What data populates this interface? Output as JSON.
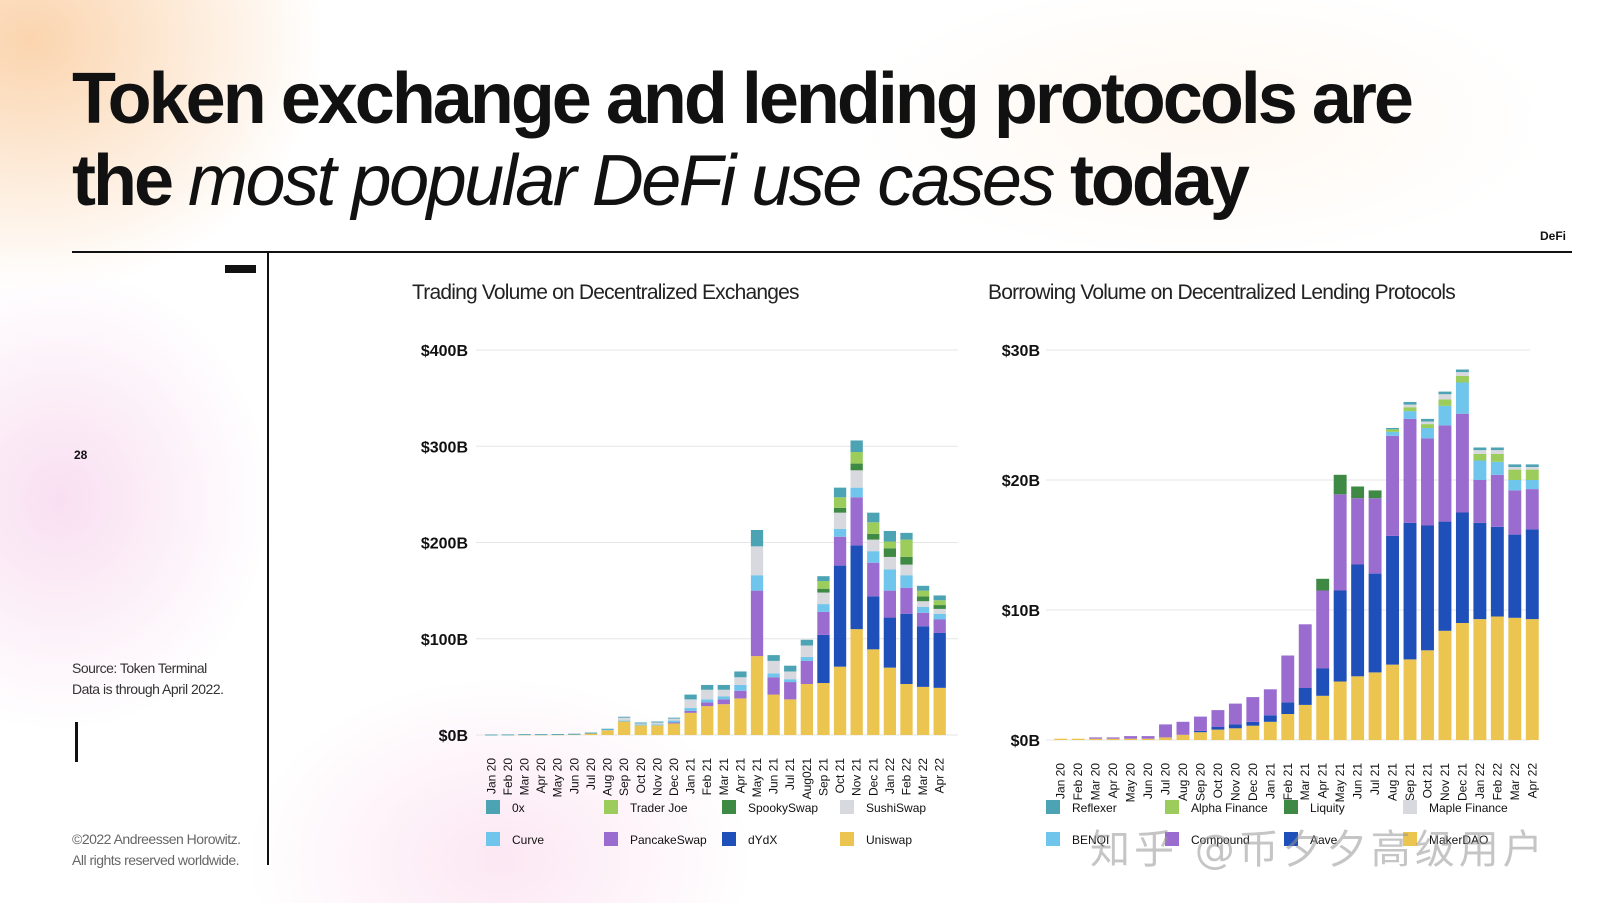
{
  "slide": {
    "title_part1": "Token exchange and lending protocols are",
    "title_part2": "the",
    "title_italic": "most popular DeFi use cases",
    "title_part3": "today",
    "tag": "DeFi",
    "page_number": "28",
    "source_line1": "Source: Token Terminal",
    "source_line2": "Data is through April 2022.",
    "copyright_line1": "©2022 Andreessen Horowitz.",
    "copyright_line2": "All rights reserved worldwide.",
    "watermark": "知乎 @币夕夕高级用户"
  },
  "colors": {
    "teal": "#4ba3b3",
    "lime": "#9bcc5c",
    "green": "#3e8a45",
    "lightgray": "#d7d9de",
    "lightblue": "#6fc5ec",
    "purple": "#9b6ccf",
    "blue": "#1f4fb8",
    "yellow": "#ecc450",
    "grid": "#e6e6e6",
    "text": "#111111"
  },
  "chart_data": [
    {
      "type": "bar",
      "stacked": true,
      "title": "Trading Volume on Decentralized Exchanges",
      "categories": [
        "Jan 20",
        "Feb 20",
        "Mar 20",
        "Apr 20",
        "May 20",
        "Jun 20",
        "Jul 20",
        "Aug 20",
        "Sep 20",
        "Oct 20",
        "Nov 20",
        "Dec 20",
        "Jan 21",
        "Feb 21",
        "Mar 21",
        "Apr 21",
        "May 21",
        "Jun 21",
        "Jul 21",
        "Aug021",
        "Sep 21",
        "Oct 21",
        "Nov 21",
        "Dec 21",
        "Jan 22",
        "Feb 22",
        "Mar 22",
        "Apr 22"
      ],
      "yticks": [
        "$0B",
        "$100B",
        "$200B",
        "$300B",
        "$400B"
      ],
      "ylim": [
        0,
        400
      ],
      "grid": true,
      "legend_position": "bottom",
      "series": [
        {
          "name": "Uniswap",
          "color": "yellow",
          "values": [
            0.3,
            0.4,
            0.5,
            0.5,
            0.6,
            1,
            2,
            5,
            14,
            10,
            10,
            12,
            23,
            30,
            32,
            38,
            82,
            42,
            37,
            53,
            54,
            71,
            110,
            89,
            70,
            53,
            50,
            49
          ]
        },
        {
          "name": "dYdX",
          "color": "blue",
          "values": [
            0,
            0,
            0,
            0,
            0,
            0,
            0,
            0,
            0,
            0,
            0,
            0,
            0,
            0,
            0,
            0,
            0,
            0,
            0,
            0,
            50,
            105,
            87,
            55,
            52,
            73,
            63,
            57
          ]
        },
        {
          "name": "PancakeSwap",
          "color": "purple",
          "values": [
            0,
            0,
            0,
            0,
            0,
            0,
            0,
            0,
            0,
            0,
            0,
            1,
            2,
            4,
            5,
            8,
            68,
            18,
            18,
            24,
            24,
            30,
            50,
            35,
            28,
            27,
            14,
            14
          ]
        },
        {
          "name": "Curve",
          "color": "lightblue",
          "values": [
            0.1,
            0.1,
            0.2,
            0.2,
            0.2,
            0.2,
            0.3,
            1,
            1,
            1,
            1,
            2,
            3,
            3,
            3,
            6,
            16,
            4,
            3,
            4,
            8,
            8,
            10,
            12,
            22,
            13,
            6,
            6
          ]
        },
        {
          "name": "SushiSwap",
          "color": "lightgray",
          "values": [
            0,
            0,
            0,
            0,
            0,
            0,
            0,
            0,
            3,
            1,
            2,
            2,
            9,
            10,
            7,
            8,
            30,
            13,
            8,
            12,
            12,
            17,
            18,
            12,
            13,
            11,
            6,
            5
          ]
        },
        {
          "name": "SpookySwap",
          "color": "green",
          "values": [
            0,
            0,
            0,
            0,
            0,
            0,
            0,
            0,
            0,
            0,
            0,
            0,
            0,
            0,
            0,
            0,
            0,
            0,
            0,
            0,
            4,
            5,
            7,
            6,
            9,
            8,
            5,
            4
          ]
        },
        {
          "name": "Trader Joe",
          "color": "lime",
          "values": [
            0,
            0,
            0,
            0,
            0,
            0,
            0,
            0,
            0,
            0,
            0,
            0,
            0,
            0,
            0,
            0,
            0,
            0,
            0,
            0,
            8,
            11,
            12,
            12,
            7,
            18,
            6,
            5
          ]
        },
        {
          "name": "0x",
          "color": "teal",
          "values": [
            0.1,
            0.1,
            0.1,
            0.1,
            0.1,
            0.1,
            0.2,
            0.5,
            1,
            1,
            1,
            1,
            5,
            5,
            5,
            6,
            17,
            6,
            6,
            6,
            5,
            10,
            12,
            10,
            11,
            7,
            5,
            5
          ]
        }
      ],
      "legend": [
        "0x",
        "Trader Joe",
        "SpookySwap",
        "SushiSwap",
        "Curve",
        "PancakeSwap",
        "dYdX",
        "Uniswap"
      ]
    },
    {
      "type": "bar",
      "stacked": true,
      "title": "Borrowing Volume on Decentralized Lending Protocols",
      "categories": [
        "Jan 20",
        "Feb 20",
        "Mar 20",
        "Apr 20",
        "May 20",
        "Jun 20",
        "Jul 20",
        "Aug 20",
        "Sep 20",
        "Oct 20",
        "Nov 20",
        "Dec 20",
        "Jan 21",
        "Feb 21",
        "Mar 21",
        "Apr 21",
        "May 21",
        "Jun 21",
        "Jul 21",
        "Aug 21",
        "Sep 21",
        "Oct 21",
        "Nov 21",
        "Dec 21",
        "Jan 22",
        "Feb 22",
        "Mar 22",
        "Apr 22"
      ],
      "yticks": [
        "$0B",
        "$10B",
        "$20B",
        "$30B"
      ],
      "ylim": [
        0,
        30
      ],
      "grid": true,
      "legend_position": "bottom",
      "series": [
        {
          "name": "MakerDAO",
          "color": "yellow",
          "values": [
            0.1,
            0.1,
            0.1,
            0.1,
            0.1,
            0.1,
            0.2,
            0.4,
            0.6,
            0.8,
            0.9,
            1.1,
            1.4,
            2.0,
            2.7,
            3.4,
            4.5,
            4.9,
            5.2,
            5.8,
            6.2,
            6.9,
            8.4,
            9.0,
            9.3,
            9.5,
            9.4,
            9.3
          ]
        },
        {
          "name": "Aave",
          "color": "blue",
          "values": [
            0,
            0,
            0,
            0,
            0,
            0,
            0,
            0,
            0.1,
            0.2,
            0.3,
            0.3,
            0.5,
            0.9,
            1.3,
            2.1,
            7.0,
            8.6,
            7.6,
            9.9,
            10.5,
            9.6,
            8.4,
            8.5,
            7.4,
            6.9,
            6.4,
            6.9
          ]
        },
        {
          "name": "Compound",
          "color": "purple",
          "values": [
            0,
            0,
            0.1,
            0.1,
            0.2,
            0.2,
            1.0,
            1.0,
            1.1,
            1.3,
            1.6,
            1.9,
            2.0,
            3.6,
            4.9,
            6.0,
            7.4,
            5.1,
            5.8,
            7.7,
            8.0,
            6.7,
            7.4,
            7.6,
            3.3,
            4.0,
            3.4,
            3.1
          ]
        },
        {
          "name": "Liquity",
          "color": "green",
          "values": [
            0,
            0,
            0,
            0,
            0,
            0,
            0,
            0,
            0,
            0,
            0,
            0,
            0,
            0,
            0,
            0.9,
            1.5,
            0.9,
            0.6,
            0,
            0,
            0,
            0,
            0,
            0,
            0,
            0,
            0
          ]
        },
        {
          "name": "BENQI",
          "color": "lightblue",
          "values": [
            0,
            0,
            0,
            0,
            0,
            0,
            0,
            0,
            0,
            0,
            0,
            0,
            0,
            0,
            0,
            0,
            0,
            0,
            0,
            0.3,
            0.6,
            0.8,
            1.5,
            2.4,
            1.5,
            1.0,
            0.8,
            0.7
          ]
        },
        {
          "name": "Alpha Finance",
          "color": "lime",
          "values": [
            0,
            0,
            0,
            0,
            0,
            0,
            0,
            0,
            0,
            0,
            0,
            0,
            0,
            0,
            0,
            0,
            0,
            0,
            0,
            0.2,
            0.3,
            0.3,
            0.5,
            0.5,
            0.5,
            0.6,
            0.8,
            0.8
          ]
        },
        {
          "name": "Maple Finance",
          "color": "lightgray",
          "values": [
            0,
            0,
            0,
            0,
            0,
            0,
            0,
            0,
            0,
            0,
            0,
            0,
            0,
            0,
            0,
            0,
            0,
            0,
            0,
            0,
            0.2,
            0.2,
            0.4,
            0.3,
            0.3,
            0.3,
            0.2,
            0.2
          ]
        },
        {
          "name": "Reflexer",
          "color": "teal",
          "values": [
            0,
            0,
            0,
            0,
            0,
            0,
            0,
            0,
            0,
            0,
            0,
            0,
            0,
            0,
            0,
            0,
            0,
            0,
            0,
            0.1,
            0.2,
            0.2,
            0.2,
            0.2,
            0.2,
            0.2,
            0.2,
            0.2
          ]
        }
      ],
      "legend": [
        "Reflexer",
        "Alpha Finance",
        "Liquity",
        "Maple Finance",
        "BENQI",
        "Compound",
        "Aave",
        "MakerDAO"
      ]
    }
  ]
}
